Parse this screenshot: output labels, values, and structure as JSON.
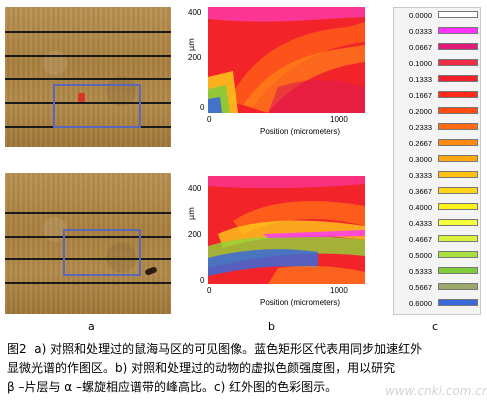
{
  "panel_a_top": {},
  "panel_a_bottom": {},
  "panel_b_top": {
    "y_axis_label": "μm",
    "y_ticks": [
      "400",
      "200",
      "0"
    ],
    "x_ticks": [
      "0",
      "1000"
    ],
    "x_axis_label": "Position (micrometers)"
  },
  "panel_b_bottom": {
    "y_axis_label": "μm",
    "y_ticks": [
      "400",
      "200",
      "0"
    ],
    "x_ticks": [
      "0",
      "1000"
    ],
    "x_axis_label": "Position (micrometers)"
  },
  "color_scale": [
    {
      "value": "0.0000",
      "color": "#ffffff"
    },
    {
      "value": "0.0333",
      "color": "#ff33ff"
    },
    {
      "value": "0.0667",
      "color": "#e01a7a"
    },
    {
      "value": "0.1000",
      "color": "#ee2c45"
    },
    {
      "value": "0.1333",
      "color": "#f1202a"
    },
    {
      "value": "0.1667",
      "color": "#ff2a1a"
    },
    {
      "value": "0.2000",
      "color": "#ff4b12"
    },
    {
      "value": "0.2333",
      "color": "#ff6a12"
    },
    {
      "value": "0.2667",
      "color": "#ff8a12"
    },
    {
      "value": "0.3000",
      "color": "#ffa812"
    },
    {
      "value": "0.3333",
      "color": "#ffc014"
    },
    {
      "value": "0.3667",
      "color": "#ffd41b"
    },
    {
      "value": "0.4000",
      "color": "#fff21b"
    },
    {
      "value": "0.4333",
      "color": "#f6ff3b"
    },
    {
      "value": "0.4667",
      "color": "#d9f13b"
    },
    {
      "value": "0.5000",
      "color": "#a8e041"
    },
    {
      "value": "0.5333",
      "color": "#7fcc3b"
    },
    {
      "value": "0.5667",
      "color": "#9aa86a"
    },
    {
      "value": "0.6000",
      "color": "#3b68d8"
    }
  ],
  "labels": {
    "a": "a",
    "b": "b",
    "c": "c"
  },
  "caption": "图2  a) 对照和处理过的鼠海马区的可见图像。蓝色矩形区代表用同步加速红外\n显微光谱的作图区。b) 对照和处理过的动物的虚拟色颜强度图，用以研究\nβ –片层与 α –螺旋相应谱带的峰高比。c) 红外图的色彩图示。",
  "watermark": "www.cnki.com.cn"
}
